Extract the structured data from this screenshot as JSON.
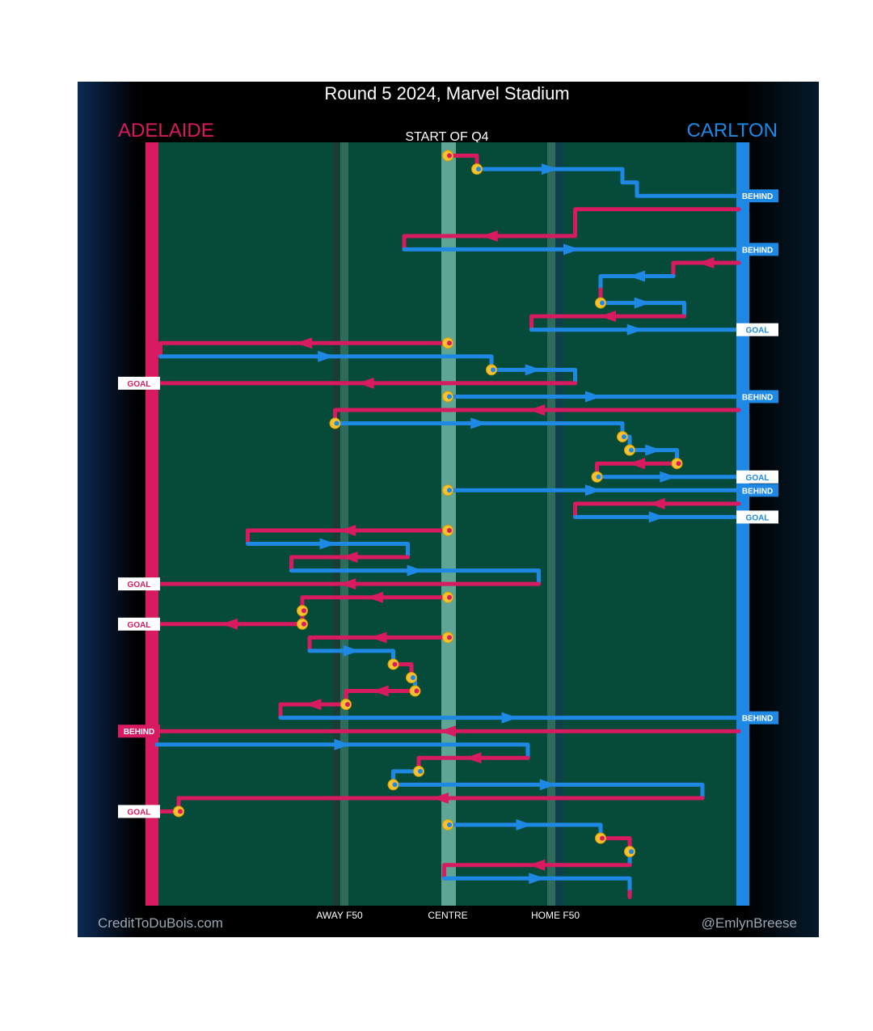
{
  "title": "Round 5 2024, Marvel Stadium",
  "subtitle": "START OF Q4",
  "teams": {
    "left": {
      "name": "ADELAIDE",
      "color": "#D81B60"
    },
    "right": {
      "name": "CARLTON",
      "color": "#1E88E5"
    }
  },
  "field_labels": {
    "away": "AWAY F50",
    "centre": "CENTRE",
    "home": "HOME F50"
  },
  "credits": {
    "left": "CreditToDuBois.com",
    "right": "@EmlynBreese"
  },
  "colors": {
    "adelaide": "#D81B60",
    "carlton": "#1E88E5",
    "field": "#064A3A",
    "stoppage": "#F9C22E"
  },
  "chart_data": {
    "type": "line",
    "title": "Round 5 2024, Marvel Stadium",
    "subtitle": "START OF Q4",
    "x_axis": {
      "range": [
        -100,
        100
      ],
      "ticks": [
        {
          "value": -60,
          "label": "AWAY F50"
        },
        {
          "value": 0,
          "label": "CENTRE"
        },
        {
          "value": 60,
          "label": "HOME F50"
        }
      ]
    },
    "y_axis": {
      "range": [
        0,
        57
      ]
    },
    "series": [
      {
        "name": "ADELAIDE",
        "color": "#D81B60"
      },
      {
        "name": "CARLTON",
        "color": "#1E88E5"
      }
    ],
    "chains": [
      {
        "team": "A",
        "points": [
          [
            0,
            1
          ],
          [
            16,
            1
          ],
          [
            16,
            2
          ]
        ],
        "start_stoppage": true
      },
      {
        "team": "C",
        "points": [
          [
            16,
            2
          ],
          [
            96,
            2
          ],
          [
            96,
            3
          ],
          [
            104,
            3
          ],
          [
            104,
            4
          ],
          [
            160,
            4
          ]
        ],
        "start_stoppage": true,
        "result": "BEHIND",
        "result_y": 4
      },
      {
        "team": "A",
        "points": [
          [
            160,
            5
          ],
          [
            70,
            5
          ],
          [
            70,
            7
          ],
          [
            -24,
            7
          ],
          [
            -24,
            8
          ]
        ]
      },
      {
        "team": "C",
        "points": [
          [
            -24,
            8
          ],
          [
            160,
            8
          ]
        ],
        "result": "BEHIND",
        "result_y": 8
      },
      {
        "team": "A",
        "points": [
          [
            160,
            9
          ],
          [
            124,
            9
          ],
          [
            124,
            10
          ]
        ]
      },
      {
        "team": "C",
        "points": [
          [
            124,
            10
          ],
          [
            84,
            10
          ],
          [
            84,
            11
          ]
        ]
      },
      {
        "team": "A",
        "points": [
          [
            84,
            11
          ],
          [
            84,
            12
          ]
        ]
      },
      {
        "team": "C",
        "points": [
          [
            84,
            12
          ],
          [
            130,
            12
          ],
          [
            130,
            13
          ]
        ],
        "start_stoppage": true
      },
      {
        "team": "A",
        "points": [
          [
            130,
            13
          ],
          [
            46,
            13
          ],
          [
            46,
            14
          ]
        ]
      },
      {
        "team": "C",
        "points": [
          [
            46,
            14
          ],
          [
            160,
            14
          ]
        ],
        "result": "GOAL",
        "result_y": 14
      },
      {
        "team": "A",
        "points": [
          [
            0,
            15
          ],
          [
            -158,
            15
          ],
          [
            -158,
            16
          ]
        ],
        "start_stoppage": true
      },
      {
        "team": "C",
        "points": [
          [
            -158,
            16
          ],
          [
            24,
            16
          ],
          [
            24,
            17
          ]
        ]
      },
      {
        "team": "C",
        "points": [
          [
            24,
            17
          ],
          [
            70,
            17
          ],
          [
            70,
            18
          ]
        ],
        "start_stoppage": true
      },
      {
        "team": "A",
        "points": [
          [
            70,
            18
          ],
          [
            -160,
            18
          ]
        ],
        "result": "GOAL",
        "result_y": 18
      },
      {
        "team": "C",
        "points": [
          [
            0,
            19
          ],
          [
            160,
            19
          ]
        ],
        "start_stoppage": true,
        "result": "BEHIND",
        "result_y": 19
      },
      {
        "team": "A",
        "points": [
          [
            160,
            20
          ],
          [
            -62,
            20
          ],
          [
            -62,
            21
          ]
        ]
      },
      {
        "team": "C",
        "points": [
          [
            -62,
            21
          ],
          [
            96,
            21
          ],
          [
            96,
            22
          ]
        ],
        "start_stoppage": true
      },
      {
        "team": "C",
        "points": [
          [
            96,
            22
          ],
          [
            100,
            22
          ],
          [
            100,
            23
          ]
        ],
        "start_stoppage": true
      },
      {
        "team": "C",
        "points": [
          [
            100,
            23
          ],
          [
            126,
            23
          ],
          [
            126,
            24
          ]
        ],
        "start_stoppage": true
      },
      {
        "team": "A",
        "points": [
          [
            126,
            24
          ],
          [
            82,
            24
          ],
          [
            82,
            25
          ]
        ],
        "start_stoppage": true
      },
      {
        "team": "C",
        "points": [
          [
            82,
            25
          ],
          [
            160,
            25
          ]
        ],
        "start_stoppage": true,
        "result": "GOAL",
        "result_y": 25
      },
      {
        "team": "C",
        "points": [
          [
            0,
            26
          ],
          [
            160,
            26
          ]
        ],
        "start_stoppage": true,
        "result": "BEHIND",
        "result_y": 26
      },
      {
        "team": "A",
        "points": [
          [
            160,
            27
          ],
          [
            70,
            27
          ],
          [
            70,
            28
          ]
        ]
      },
      {
        "team": "C",
        "points": [
          [
            70,
            28
          ],
          [
            160,
            28
          ]
        ],
        "result": "GOAL",
        "result_y": 28
      },
      {
        "team": "A",
        "points": [
          [
            0,
            29
          ],
          [
            -110,
            29
          ],
          [
            -110,
            30
          ]
        ],
        "start_stoppage": true
      },
      {
        "team": "C",
        "points": [
          [
            -110,
            30
          ],
          [
            -22,
            30
          ],
          [
            -22,
            31
          ]
        ]
      },
      {
        "team": "A",
        "points": [
          [
            -22,
            31
          ],
          [
            -86,
            31
          ],
          [
            -86,
            32
          ]
        ]
      },
      {
        "team": "C",
        "points": [
          [
            -86,
            32
          ],
          [
            50,
            32
          ],
          [
            50,
            33
          ]
        ]
      },
      {
        "team": "A",
        "points": [
          [
            50,
            33
          ],
          [
            -160,
            33
          ]
        ],
        "result": "GOAL",
        "result_y": 33
      },
      {
        "team": "A",
        "points": [
          [
            0,
            34
          ],
          [
            -80,
            34
          ],
          [
            -80,
            35
          ]
        ],
        "start_stoppage": true
      },
      {
        "team": "A",
        "points": [
          [
            -80,
            35
          ],
          [
            -80,
            36
          ]
        ],
        "start_stoppage": true
      },
      {
        "team": "A",
        "points": [
          [
            -80,
            36
          ],
          [
            -160,
            36
          ]
        ],
        "start_stoppage": true,
        "result": "GOAL",
        "result_y": 36
      },
      {
        "team": "A",
        "points": [
          [
            0,
            37
          ],
          [
            -76,
            37
          ],
          [
            -76,
            38
          ]
        ],
        "start_stoppage": true
      },
      {
        "team": "C",
        "points": [
          [
            -76,
            38
          ],
          [
            -30,
            38
          ],
          [
            -30,
            39
          ]
        ]
      },
      {
        "team": "A",
        "points": [
          [
            -30,
            39
          ],
          [
            -20,
            39
          ],
          [
            -20,
            40
          ]
        ],
        "start_stoppage": true
      },
      {
        "team": "C",
        "points": [
          [
            -20,
            40
          ],
          [
            -18,
            40
          ],
          [
            -18,
            41
          ]
        ],
        "start_stoppage": true
      },
      {
        "team": "A",
        "points": [
          [
            -18,
            41
          ],
          [
            -56,
            41
          ],
          [
            -56,
            42
          ]
        ],
        "start_stoppage": true
      },
      {
        "team": "A",
        "points": [
          [
            -56,
            42
          ],
          [
            -92,
            42
          ],
          [
            -92,
            43
          ]
        ],
        "start_stoppage": true
      },
      {
        "team": "C",
        "points": [
          [
            -92,
            43
          ],
          [
            160,
            43
          ]
        ],
        "result": "BEHIND",
        "result_y": 43
      },
      {
        "team": "A",
        "points": [
          [
            160,
            44
          ],
          [
            -160,
            44
          ]
        ],
        "result": "BEHIND",
        "result_y": 44
      },
      {
        "team": "C",
        "points": [
          [
            -160,
            45
          ],
          [
            44,
            45
          ],
          [
            44,
            46
          ]
        ]
      },
      {
        "team": "A",
        "points": [
          [
            44,
            46
          ],
          [
            -16,
            46
          ],
          [
            -16,
            47
          ]
        ]
      },
      {
        "team": "C",
        "points": [
          [
            -16,
            47
          ],
          [
            -30,
            47
          ],
          [
            -30,
            48
          ]
        ],
        "start_stoppage": true
      },
      {
        "team": "C",
        "points": [
          [
            -30,
            48
          ],
          [
            140,
            48
          ],
          [
            140,
            49
          ]
        ],
        "start_stoppage": true
      },
      {
        "team": "A",
        "points": [
          [
            140,
            49
          ],
          [
            -148,
            49
          ],
          [
            -148,
            50
          ]
        ]
      },
      {
        "team": "A",
        "points": [
          [
            -148,
            50
          ],
          [
            -160,
            50
          ]
        ],
        "start_stoppage": true,
        "result": "GOAL",
        "result_y": 50
      },
      {
        "team": "C",
        "points": [
          [
            0,
            51
          ],
          [
            84,
            51
          ],
          [
            84,
            52
          ]
        ],
        "start_stoppage": true
      },
      {
        "team": "A",
        "points": [
          [
            84,
            52
          ],
          [
            100,
            52
          ],
          [
            100,
            53
          ]
        ],
        "start_stoppage": true
      },
      {
        "team": "C",
        "points": [
          [
            100,
            53
          ],
          [
            100,
            54
          ]
        ],
        "start_stoppage": true
      },
      {
        "team": "A",
        "points": [
          [
            100,
            54
          ],
          [
            -2,
            54
          ],
          [
            -2,
            55
          ]
        ]
      },
      {
        "team": "C",
        "points": [
          [
            -2,
            55
          ],
          [
            100,
            55
          ],
          [
            100,
            56
          ]
        ]
      },
      {
        "team": "A",
        "points": [
          [
            100,
            56
          ],
          [
            100,
            56.4
          ]
        ]
      }
    ]
  }
}
